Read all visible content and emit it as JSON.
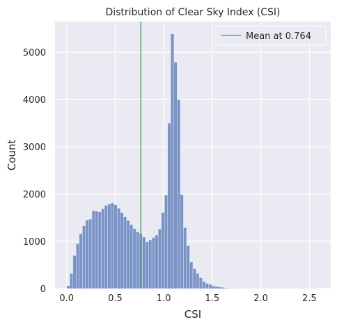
{
  "chart_data": {
    "type": "bar",
    "title": "Distribution of Clear Sky Index (CSI)",
    "xlabel": "CSI",
    "ylabel": "Count",
    "xlim": [
      -0.12,
      2.72
    ],
    "ylim": [
      0,
      5650
    ],
    "x_ticks": [
      {
        "value": 0.0,
        "label": "0.0"
      },
      {
        "value": 0.5,
        "label": "0.5"
      },
      {
        "value": 1.0,
        "label": "1.0"
      },
      {
        "value": 1.5,
        "label": "1.5"
      },
      {
        "value": 2.0,
        "label": "2.0"
      },
      {
        "value": 2.5,
        "label": "2.5"
      }
    ],
    "y_ticks": [
      {
        "value": 0,
        "label": "0"
      },
      {
        "value": 1000,
        "label": "1000"
      },
      {
        "value": 2000,
        "label": "2000"
      },
      {
        "value": 3000,
        "label": "3000"
      },
      {
        "value": 4000,
        "label": "4000"
      },
      {
        "value": 5000,
        "label": "5000"
      }
    ],
    "bin_width": 0.0325,
    "bins_start": [
      0.0,
      0.0325,
      0.065,
      0.0975,
      0.13,
      0.1625,
      0.195,
      0.2275,
      0.26,
      0.2925,
      0.325,
      0.3575,
      0.39,
      0.4225,
      0.455,
      0.4875,
      0.52,
      0.5525,
      0.585,
      0.6175,
      0.65,
      0.6825,
      0.715,
      0.7475,
      0.78,
      0.8125,
      0.845,
      0.8775,
      0.91,
      0.9425,
      0.975,
      1.0075,
      1.04,
      1.0725,
      1.105,
      1.1375,
      1.17,
      1.2025,
      1.235,
      1.2675,
      1.3,
      1.3325,
      1.365,
      1.3975,
      1.43,
      1.4625,
      1.495,
      1.5275,
      1.56,
      1.5925,
      1.625,
      1.6575,
      1.69,
      1.7225,
      1.755,
      1.7875,
      1.82,
      1.8525,
      1.885,
      1.9175,
      1.95,
      1.9825,
      2.015,
      2.0475,
      2.08,
      2.1125,
      2.145,
      2.1775,
      2.21,
      2.2425,
      2.275,
      2.3075,
      2.34,
      2.3725,
      2.405,
      2.4375,
      2.47,
      2.5025,
      2.535,
      2.5675
    ],
    "values": [
      60,
      320,
      700,
      950,
      1160,
      1330,
      1450,
      1470,
      1650,
      1640,
      1620,
      1690,
      1760,
      1790,
      1810,
      1770,
      1700,
      1610,
      1520,
      1440,
      1350,
      1270,
      1200,
      1160,
      1090,
      990,
      1030,
      1080,
      1130,
      1260,
      1610,
      1980,
      3500,
      5390,
      4790,
      4000,
      1990,
      1290,
      910,
      560,
      420,
      320,
      230,
      150,
      110,
      90,
      60,
      45,
      35,
      25,
      15,
      10,
      8,
      6,
      5,
      4,
      3,
      3,
      2,
      2,
      2,
      1,
      1,
      1,
      1,
      1,
      1,
      1,
      1,
      1,
      1,
      1,
      1,
      1,
      1,
      1,
      1,
      1,
      1,
      1
    ],
    "mean_line": {
      "x": 0.764,
      "label": "Mean at 0.764"
    },
    "colors": {
      "bar_fill": "#7893c6",
      "bar_edge": "#eaeaf2",
      "mean_line": "#55a868",
      "plot_bg": "#eaeaf2",
      "grid": "#ffffff"
    },
    "grid": true,
    "legend_position": "top-right"
  }
}
